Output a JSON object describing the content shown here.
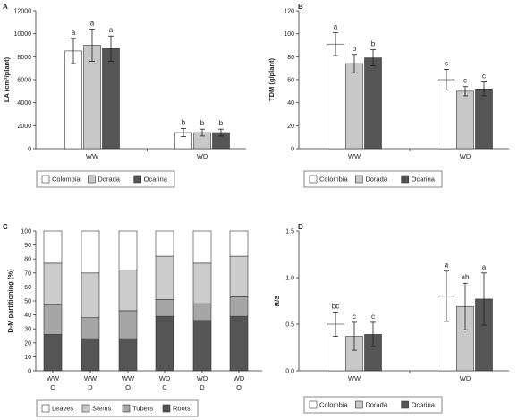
{
  "chart_data": [
    {
      "panel": "A",
      "type": "bar",
      "ylabel": "LA (cm²/plant)",
      "ylim": [
        0,
        12000
      ],
      "yticks": [
        0,
        2000,
        4000,
        6000,
        8000,
        10000,
        12000
      ],
      "categories": [
        "WW",
        "WD"
      ],
      "legend": "bottom",
      "series": [
        {
          "name": "Colombia",
          "color": "#ffffff",
          "values": [
            8500,
            1400
          ],
          "errors": [
            1100,
            350
          ],
          "labels": [
            "a",
            "b"
          ]
        },
        {
          "name": "Dorada",
          "color": "#c8c8c8",
          "values": [
            9000,
            1400
          ],
          "errors": [
            1400,
            300
          ],
          "labels": [
            "a",
            "b"
          ]
        },
        {
          "name": "Ocarina",
          "color": "#555555",
          "values": [
            8700,
            1400
          ],
          "errors": [
            1100,
            300
          ],
          "labels": [
            "a",
            "b"
          ]
        }
      ]
    },
    {
      "panel": "B",
      "type": "bar",
      "ylabel": "TDM (g/plant)",
      "ylim": [
        0,
        120
      ],
      "yticks": [
        0,
        20,
        40,
        60,
        80,
        100,
        120
      ],
      "categories": [
        "WW",
        "WD"
      ],
      "legend": "bottom",
      "series": [
        {
          "name": "Colombia",
          "color": "#ffffff",
          "values": [
            91,
            60
          ],
          "errors": [
            10,
            9
          ],
          "labels": [
            "a",
            "c"
          ]
        },
        {
          "name": "Dorada",
          "color": "#c8c8c8",
          "values": [
            74,
            50
          ],
          "errors": [
            8,
            4
          ],
          "labels": [
            "b",
            "c"
          ]
        },
        {
          "name": "Ocarina",
          "color": "#555555",
          "values": [
            79,
            52
          ],
          "errors": [
            7,
            6
          ],
          "labels": [
            "b",
            "c"
          ]
        }
      ]
    },
    {
      "panel": "C",
      "type": "bar",
      "stacked": true,
      "ylabel": "D-M partitioning (%)",
      "ylim": [
        0,
        100
      ],
      "yticks": [
        0,
        10,
        20,
        30,
        40,
        50,
        60,
        70,
        80,
        90,
        100
      ],
      "categories": [
        [
          "WW",
          "C"
        ],
        [
          "WW",
          "D"
        ],
        [
          "WW",
          "O"
        ],
        [
          "WD",
          "C"
        ],
        [
          "WD",
          "D"
        ],
        [
          "WD",
          "O"
        ]
      ],
      "legend": "bottom",
      "series": [
        {
          "name": "Roots",
          "color": "#555555",
          "values": [
            26,
            23,
            23,
            39,
            36,
            39
          ]
        },
        {
          "name": "Tubers",
          "color": "#a6a6a6",
          "values": [
            21,
            15,
            20,
            12,
            12,
            14
          ]
        },
        {
          "name": "Stems",
          "color": "#cccccc",
          "values": [
            30,
            32,
            29,
            31,
            29,
            29
          ]
        },
        {
          "name": "Leaves",
          "color": "#ffffff",
          "values": [
            23,
            30,
            28,
            18,
            23,
            18
          ]
        }
      ]
    },
    {
      "panel": "D",
      "type": "bar",
      "ylabel": "R/S",
      "ylim": [
        0,
        1.5
      ],
      "yticks": [
        "0.0",
        "0.5",
        "1.0",
        "1.5"
      ],
      "categories": [
        "WW",
        "WD"
      ],
      "legend": "bottom",
      "series": [
        {
          "name": "Colombia",
          "color": "#ffffff",
          "values": [
            0.5,
            0.8
          ],
          "errors": [
            0.13,
            0.27
          ],
          "labels": [
            "bc",
            "a"
          ]
        },
        {
          "name": "Dorada",
          "color": "#c8c8c8",
          "values": [
            0.37,
            0.69
          ],
          "errors": [
            0.15,
            0.25
          ],
          "labels": [
            "c",
            "ab"
          ]
        },
        {
          "name": "Ocarina",
          "color": "#555555",
          "values": [
            0.39,
            0.77
          ],
          "errors": [
            0.13,
            0.28
          ],
          "labels": [
            "c",
            "a"
          ]
        }
      ]
    }
  ]
}
